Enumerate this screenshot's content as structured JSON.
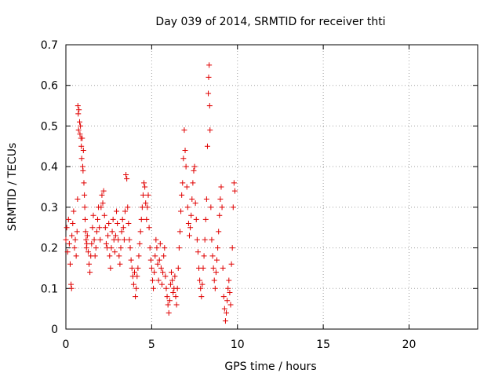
{
  "chart_data": {
    "type": "scatter",
    "title": "Day 039 of 2014, SRMTID for receiver thti",
    "xlabel": "GPS time / hours",
    "ylabel": "SRMTID / TECUs",
    "xlim": [
      0,
      24
    ],
    "ylim": [
      0,
      0.7
    ],
    "xticks": [
      0,
      5,
      10,
      15,
      20
    ],
    "yticks": [
      0,
      0.1,
      0.2,
      0.3,
      0.4,
      0.5,
      0.6,
      0.7
    ],
    "xtick_labels": [
      "0",
      "5",
      "10",
      "15",
      "20"
    ],
    "ytick_labels": [
      "0",
      "0.1",
      "0.2",
      "0.3",
      "0.4",
      "0.5",
      "0.6",
      "0.7"
    ],
    "grid": true,
    "marker": "+",
    "series_color": "#e00000",
    "points": [
      [
        0.0,
        0.22
      ],
      [
        0.05,
        0.25
      ],
      [
        0.1,
        0.19
      ],
      [
        0.15,
        0.27
      ],
      [
        0.2,
        0.21
      ],
      [
        0.25,
        0.16
      ],
      [
        0.3,
        0.11
      ],
      [
        0.33,
        0.1
      ],
      [
        0.35,
        0.23
      ],
      [
        0.4,
        0.26
      ],
      [
        0.45,
        0.29
      ],
      [
        0.5,
        0.2
      ],
      [
        0.55,
        0.22
      ],
      [
        0.6,
        0.18
      ],
      [
        0.65,
        0.24
      ],
      [
        0.68,
        0.32
      ],
      [
        0.7,
        0.55
      ],
      [
        0.72,
        0.53
      ],
      [
        0.74,
        0.49
      ],
      [
        0.76,
        0.54
      ],
      [
        0.8,
        0.51
      ],
      [
        0.82,
        0.48
      ],
      [
        0.85,
        0.5
      ],
      [
        0.88,
        0.47
      ],
      [
        0.9,
        0.45
      ],
      [
        0.92,
        0.42
      ],
      [
        0.95,
        0.47
      ],
      [
        0.98,
        0.4
      ],
      [
        1.0,
        0.39
      ],
      [
        1.02,
        0.44
      ],
      [
        1.05,
        0.36
      ],
      [
        1.08,
        0.33
      ],
      [
        1.1,
        0.3
      ],
      [
        1.12,
        0.27
      ],
      [
        1.15,
        0.24
      ],
      [
        1.18,
        0.22
      ],
      [
        1.2,
        0.2
      ],
      [
        1.22,
        0.21
      ],
      [
        1.25,
        0.23
      ],
      [
        1.3,
        0.19
      ],
      [
        1.35,
        0.16
      ],
      [
        1.4,
        0.14
      ],
      [
        1.45,
        0.18
      ],
      [
        1.5,
        0.21
      ],
      [
        1.55,
        0.25
      ],
      [
        1.6,
        0.28
      ],
      [
        1.65,
        0.22
      ],
      [
        1.7,
        0.18
      ],
      [
        1.75,
        0.2
      ],
      [
        1.8,
        0.24
      ],
      [
        1.85,
        0.27
      ],
      [
        1.9,
        0.3
      ],
      [
        1.95,
        0.25
      ],
      [
        2.0,
        0.22
      ],
      [
        2.05,
        0.3
      ],
      [
        2.1,
        0.33
      ],
      [
        2.15,
        0.31
      ],
      [
        2.2,
        0.34
      ],
      [
        2.25,
        0.28
      ],
      [
        2.3,
        0.25
      ],
      [
        2.35,
        0.21
      ],
      [
        2.4,
        0.2
      ],
      [
        2.45,
        0.23
      ],
      [
        2.5,
        0.26
      ],
      [
        2.55,
        0.18
      ],
      [
        2.6,
        0.15
      ],
      [
        2.65,
        0.2
      ],
      [
        2.7,
        0.24
      ],
      [
        2.75,
        0.27
      ],
      [
        2.8,
        0.22
      ],
      [
        2.85,
        0.19
      ],
      [
        2.9,
        0.23
      ],
      [
        2.95,
        0.29
      ],
      [
        3.0,
        0.26
      ],
      [
        3.05,
        0.22
      ],
      [
        3.1,
        0.18
      ],
      [
        3.15,
        0.16
      ],
      [
        3.2,
        0.2
      ],
      [
        3.25,
        0.24
      ],
      [
        3.3,
        0.27
      ],
      [
        3.35,
        0.25
      ],
      [
        3.4,
        0.22
      ],
      [
        3.45,
        0.29
      ],
      [
        3.5,
        0.38
      ],
      [
        3.55,
        0.37
      ],
      [
        3.6,
        0.3
      ],
      [
        3.65,
        0.26
      ],
      [
        3.7,
        0.22
      ],
      [
        3.75,
        0.2
      ],
      [
        3.8,
        0.17
      ],
      [
        3.85,
        0.15
      ],
      [
        3.9,
        0.13
      ],
      [
        3.95,
        0.11
      ],
      [
        4.0,
        0.14
      ],
      [
        4.05,
        0.08
      ],
      [
        4.1,
        0.1
      ],
      [
        4.15,
        0.13
      ],
      [
        4.2,
        0.15
      ],
      [
        4.25,
        0.18
      ],
      [
        4.3,
        0.21
      ],
      [
        4.35,
        0.24
      ],
      [
        4.4,
        0.27
      ],
      [
        4.45,
        0.3
      ],
      [
        4.5,
        0.33
      ],
      [
        4.55,
        0.36
      ],
      [
        4.6,
        0.35
      ],
      [
        4.65,
        0.31
      ],
      [
        4.7,
        0.27
      ],
      [
        4.75,
        0.3
      ],
      [
        4.8,
        0.33
      ],
      [
        4.85,
        0.25
      ],
      [
        4.9,
        0.2
      ],
      [
        4.95,
        0.17
      ],
      [
        5.0,
        0.15
      ],
      [
        5.05,
        0.12
      ],
      [
        5.1,
        0.1
      ],
      [
        5.15,
        0.14
      ],
      [
        5.2,
        0.18
      ],
      [
        5.25,
        0.22
      ],
      [
        5.3,
        0.2
      ],
      [
        5.35,
        0.16
      ],
      [
        5.4,
        0.12
      ],
      [
        5.45,
        0.17
      ],
      [
        5.5,
        0.21
      ],
      [
        5.55,
        0.15
      ],
      [
        5.6,
        0.11
      ],
      [
        5.65,
        0.14
      ],
      [
        5.7,
        0.18
      ],
      [
        5.75,
        0.2
      ],
      [
        5.8,
        0.13
      ],
      [
        5.85,
        0.1
      ],
      [
        5.9,
        0.08
      ],
      [
        5.95,
        0.06
      ],
      [
        6.0,
        0.04
      ],
      [
        6.05,
        0.07
      ],
      [
        6.1,
        0.11
      ],
      [
        6.15,
        0.14
      ],
      [
        6.2,
        0.12
      ],
      [
        6.25,
        0.09
      ],
      [
        6.3,
        0.1
      ],
      [
        6.35,
        0.13
      ],
      [
        6.4,
        0.08
      ],
      [
        6.45,
        0.06
      ],
      [
        6.5,
        0.1
      ],
      [
        6.55,
        0.15
      ],
      [
        6.6,
        0.2
      ],
      [
        6.65,
        0.24
      ],
      [
        6.7,
        0.29
      ],
      [
        6.75,
        0.33
      ],
      [
        6.8,
        0.36
      ],
      [
        6.85,
        0.42
      ],
      [
        6.9,
        0.49
      ],
      [
        6.95,
        0.44
      ],
      [
        7.0,
        0.4
      ],
      [
        7.05,
        0.35
      ],
      [
        7.1,
        0.3
      ],
      [
        7.15,
        0.26
      ],
      [
        7.2,
        0.23
      ],
      [
        7.25,
        0.25
      ],
      [
        7.3,
        0.28
      ],
      [
        7.35,
        0.32
      ],
      [
        7.4,
        0.36
      ],
      [
        7.45,
        0.39
      ],
      [
        7.5,
        0.4
      ],
      [
        7.55,
        0.31
      ],
      [
        7.6,
        0.27
      ],
      [
        7.65,
        0.22
      ],
      [
        7.7,
        0.19
      ],
      [
        7.75,
        0.15
      ],
      [
        7.8,
        0.12
      ],
      [
        7.85,
        0.1
      ],
      [
        7.9,
        0.08
      ],
      [
        7.95,
        0.11
      ],
      [
        8.0,
        0.15
      ],
      [
        8.05,
        0.18
      ],
      [
        8.1,
        0.22
      ],
      [
        8.15,
        0.27
      ],
      [
        8.2,
        0.32
      ],
      [
        8.25,
        0.45
      ],
      [
        8.3,
        0.58
      ],
      [
        8.32,
        0.62
      ],
      [
        8.35,
        0.65
      ],
      [
        8.38,
        0.55
      ],
      [
        8.4,
        0.49
      ],
      [
        8.45,
        0.3
      ],
      [
        8.5,
        0.22
      ],
      [
        8.55,
        0.18
      ],
      [
        8.6,
        0.15
      ],
      [
        8.65,
        0.12
      ],
      [
        8.7,
        0.1
      ],
      [
        8.75,
        0.14
      ],
      [
        8.8,
        0.17
      ],
      [
        8.85,
        0.2
      ],
      [
        8.9,
        0.24
      ],
      [
        8.95,
        0.28
      ],
      [
        9.0,
        0.32
      ],
      [
        9.05,
        0.35
      ],
      [
        9.1,
        0.3
      ],
      [
        9.15,
        0.15
      ],
      [
        9.2,
        0.08
      ],
      [
        9.25,
        0.05
      ],
      [
        9.3,
        0.02
      ],
      [
        9.35,
        0.04
      ],
      [
        9.4,
        0.07
      ],
      [
        9.45,
        0.1
      ],
      [
        9.5,
        0.12
      ],
      [
        9.55,
        0.09
      ],
      [
        9.6,
        0.06
      ],
      [
        9.65,
        0.16
      ],
      [
        9.7,
        0.2
      ],
      [
        9.75,
        0.3
      ],
      [
        9.8,
        0.36
      ],
      [
        9.85,
        0.34
      ]
    ]
  }
}
